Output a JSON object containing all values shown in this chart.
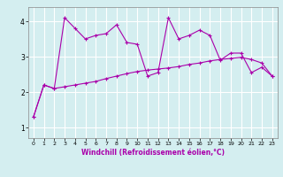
{
  "xlabel": "Windchill (Refroidissement éolien,°C)",
  "background_color": "#d4eef0",
  "line_color": "#aa00aa",
  "grid_color": "#ffffff",
  "x_ticks": [
    0,
    1,
    2,
    3,
    4,
    5,
    6,
    7,
    8,
    9,
    10,
    11,
    12,
    13,
    14,
    15,
    16,
    17,
    18,
    19,
    20,
    21,
    22,
    23
  ],
  "y_ticks": [
    1,
    2,
    3,
    4
  ],
  "ylim": [
    0.7,
    4.4
  ],
  "xlim": [
    -0.5,
    23.5
  ],
  "series1_x": [
    0,
    1,
    2,
    3,
    4,
    5,
    6,
    7,
    8,
    9,
    10,
    11,
    12,
    13,
    14,
    15,
    16,
    17,
    18,
    19,
    20,
    21,
    22,
    23
  ],
  "series1_y": [
    1.3,
    2.2,
    2.1,
    4.1,
    3.8,
    3.5,
    3.6,
    3.65,
    3.9,
    3.4,
    3.35,
    2.45,
    2.55,
    4.1,
    3.5,
    3.6,
    3.75,
    3.6,
    2.9,
    3.1,
    3.1,
    2.55,
    2.7,
    2.45
  ],
  "series2_x": [
    0,
    1,
    2,
    3,
    4,
    5,
    6,
    7,
    8,
    9,
    10,
    11,
    12,
    13,
    14,
    15,
    16,
    17,
    18,
    19,
    20,
    21,
    22,
    23
  ],
  "series2_y": [
    1.3,
    2.2,
    2.1,
    2.15,
    2.2,
    2.25,
    2.3,
    2.38,
    2.45,
    2.52,
    2.58,
    2.62,
    2.65,
    2.68,
    2.72,
    2.78,
    2.82,
    2.88,
    2.92,
    2.95,
    2.98,
    2.92,
    2.82,
    2.45
  ]
}
